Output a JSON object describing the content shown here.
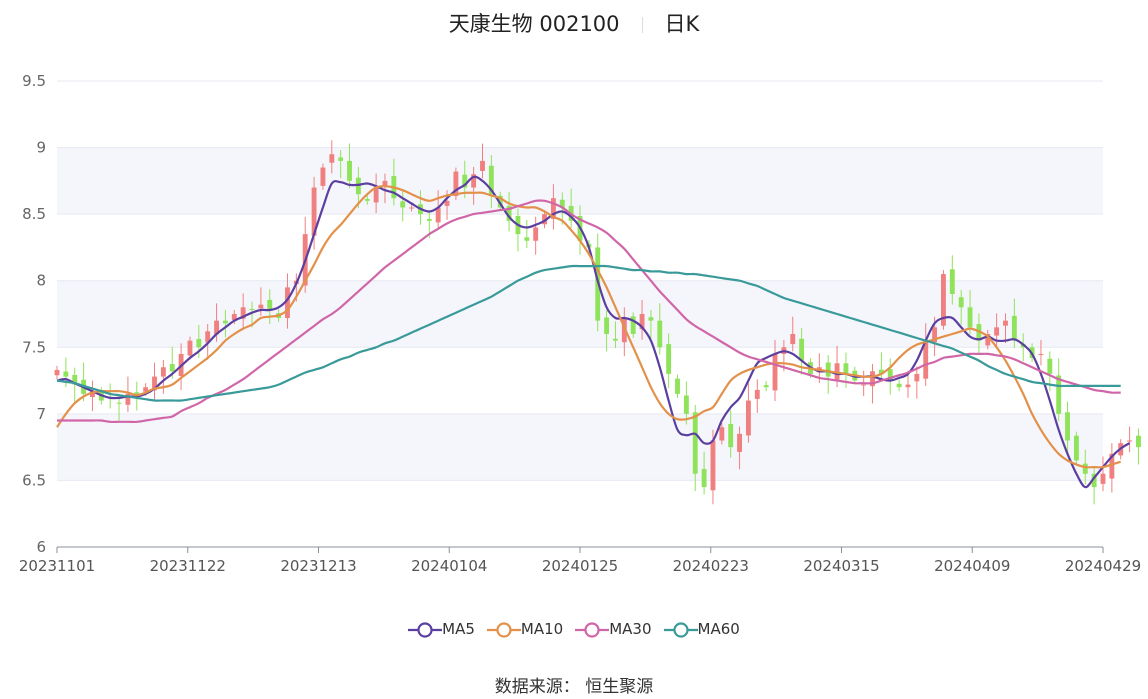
{
  "title": {
    "name": "天康生物 002100",
    "period": "日K"
  },
  "legend": [
    {
      "name": "MA5",
      "color": "#5b3fa0"
    },
    {
      "name": "MA10",
      "color": "#e3914a"
    },
    {
      "name": "MA30",
      "color": "#d066a8"
    },
    {
      "name": "MA60",
      "color": "#3a9a9a"
    }
  ],
  "source": "数据来源： 恒生聚源",
  "colors": {
    "up": "#f08080",
    "down": "#8fe35a",
    "grid": "#e6e9f2",
    "band": "#f5f6fb"
  },
  "chart_data": {
    "type": "candlestick",
    "ylim": [
      6,
      9.5
    ],
    "yticks": [
      "6",
      "6.5",
      "7",
      "7.5",
      "8",
      "8.5",
      "9",
      "9.5"
    ],
    "xticks": [
      "20231101",
      "20231122",
      "20231213",
      "20240104",
      "20240125",
      "20240223",
      "20240315",
      "20240409",
      "20240429"
    ],
    "n_days": 119,
    "closes": [
      7.33,
      7.28,
      7.22,
      7.15,
      7.17,
      7.1,
      7.12,
      7.08,
      7.15,
      7.13,
      7.2,
      7.28,
      7.35,
      7.32,
      7.45,
      7.55,
      7.5,
      7.62,
      7.7,
      7.68,
      7.75,
      7.8,
      7.78,
      7.82,
      7.78,
      7.72,
      7.95,
      8.0,
      8.35,
      8.7,
      8.85,
      8.95,
      8.9,
      8.75,
      8.65,
      8.6,
      8.7,
      8.75,
      8.62,
      8.55,
      8.55,
      8.5,
      8.45,
      8.55,
      8.6,
      8.82,
      8.7,
      8.8,
      8.9,
      8.65,
      8.55,
      8.45,
      8.35,
      8.3,
      8.4,
      8.5,
      8.62,
      8.55,
      8.45,
      8.3,
      8.25,
      7.7,
      7.6,
      7.55,
      7.72,
      7.6,
      7.75,
      7.7,
      7.5,
      7.3,
      7.15,
      7.0,
      6.55,
      6.45,
      6.8,
      6.9,
      6.75,
      6.85,
      7.1,
      7.18,
      7.2,
      7.45,
      7.5,
      7.6,
      7.4,
      7.3,
      7.35,
      7.28,
      7.38,
      7.3,
      7.25,
      7.22,
      7.32,
      7.3,
      7.25,
      7.2,
      7.22,
      7.3,
      7.55,
      7.65,
      8.05,
      7.9,
      7.8,
      7.65,
      7.55,
      7.6,
      7.65,
      7.7,
      7.55,
      7.5,
      7.42,
      7.45,
      7.3,
      7.0,
      6.8,
      6.65,
      6.55,
      6.45,
      6.55,
      6.7,
      6.78,
      6.8,
      6.75
    ],
    "series": [
      {
        "name": "MA5",
        "values": [
          7.25,
          7.26,
          7.23,
          7.2,
          7.17,
          7.14,
          7.12,
          7.12,
          7.13,
          7.13,
          7.15,
          7.19,
          7.25,
          7.3,
          7.36,
          7.42,
          7.47,
          7.53,
          7.6,
          7.65,
          7.7,
          7.73,
          7.76,
          7.78,
          7.78,
          7.8,
          7.86,
          7.98,
          8.15,
          8.35,
          8.55,
          8.73,
          8.74,
          8.72,
          8.72,
          8.73,
          8.71,
          8.68,
          8.66,
          8.62,
          8.58,
          8.54,
          8.52,
          8.55,
          8.62,
          8.68,
          8.72,
          8.78,
          8.75,
          8.68,
          8.58,
          8.48,
          8.42,
          8.4,
          8.42,
          8.45,
          8.5,
          8.52,
          8.48,
          8.4,
          8.25,
          8.0,
          7.8,
          7.72,
          7.72,
          7.7,
          7.65,
          7.55,
          7.35,
          7.1,
          6.88,
          6.84,
          6.85,
          6.78,
          6.8,
          6.95,
          7.05,
          7.12,
          7.25,
          7.38,
          7.42,
          7.45,
          7.47,
          7.45,
          7.4,
          7.35,
          7.32,
          7.32,
          7.3,
          7.3,
          7.28,
          7.28,
          7.28,
          7.26,
          7.25,
          7.27,
          7.3,
          7.4,
          7.55,
          7.68,
          7.72,
          7.72,
          7.65,
          7.58,
          7.56,
          7.58,
          7.55,
          7.55,
          7.56,
          7.52,
          7.45,
          7.3,
          7.1,
          6.88,
          6.7,
          6.55,
          6.45,
          6.52,
          6.6,
          6.68,
          6.74,
          6.78
        ]
      },
      {
        "name": "MA10",
        "values": [
          6.9,
          7.0,
          7.08,
          7.13,
          7.16,
          7.17,
          7.17,
          7.17,
          7.16,
          7.14,
          7.16,
          7.19,
          7.2,
          7.22,
          7.27,
          7.32,
          7.37,
          7.42,
          7.48,
          7.55,
          7.6,
          7.64,
          7.67,
          7.72,
          7.73,
          7.74,
          7.78,
          7.88,
          8.0,
          8.12,
          8.25,
          8.35,
          8.42,
          8.5,
          8.58,
          8.65,
          8.7,
          8.71,
          8.7,
          8.68,
          8.65,
          8.62,
          8.6,
          8.62,
          8.64,
          8.65,
          8.66,
          8.66,
          8.66,
          8.64,
          8.62,
          8.58,
          8.56,
          8.55,
          8.55,
          8.52,
          8.48,
          8.45,
          8.38,
          8.3,
          8.2,
          8.08,
          7.95,
          7.8,
          7.65,
          7.5,
          7.35,
          7.2,
          7.08,
          7.0,
          6.96,
          6.96,
          6.98,
          7.02,
          7.05,
          7.15,
          7.25,
          7.3,
          7.33,
          7.35,
          7.37,
          7.38,
          7.38,
          7.37,
          7.35,
          7.34,
          7.33,
          7.32,
          7.31,
          7.3,
          7.29,
          7.28,
          7.28,
          7.3,
          7.35,
          7.42,
          7.48,
          7.52,
          7.54,
          7.56,
          7.58,
          7.6,
          7.62,
          7.64,
          7.62,
          7.58,
          7.5,
          7.4,
          7.28,
          7.15,
          7.0,
          6.88,
          6.78,
          6.7,
          6.65,
          6.62,
          6.6,
          6.6,
          6.6,
          6.62,
          6.64
        ]
      },
      {
        "name": "MA30",
        "values": [
          6.95,
          6.95,
          6.95,
          6.95,
          6.95,
          6.95,
          6.94,
          6.94,
          6.94,
          6.94,
          6.95,
          6.96,
          6.97,
          6.98,
          7.02,
          7.05,
          7.08,
          7.12,
          7.15,
          7.18,
          7.22,
          7.26,
          7.31,
          7.36,
          7.41,
          7.46,
          7.51,
          7.56,
          7.61,
          7.66,
          7.71,
          7.75,
          7.8,
          7.86,
          7.92,
          7.98,
          8.04,
          8.1,
          8.15,
          8.2,
          8.25,
          8.3,
          8.35,
          8.39,
          8.43,
          8.46,
          8.48,
          8.5,
          8.51,
          8.52,
          8.53,
          8.54,
          8.56,
          8.58,
          8.6,
          8.6,
          8.58,
          8.55,
          8.5,
          8.46,
          8.43,
          8.4,
          8.36,
          8.3,
          8.24,
          8.16,
          8.08,
          8.0,
          7.92,
          7.85,
          7.78,
          7.71,
          7.66,
          7.62,
          7.58,
          7.54,
          7.5,
          7.46,
          7.43,
          7.41,
          7.39,
          7.37,
          7.35,
          7.33,
          7.31,
          7.29,
          7.27,
          7.26,
          7.25,
          7.24,
          7.23,
          7.23,
          7.23,
          7.25,
          7.27,
          7.29,
          7.31,
          7.34,
          7.37,
          7.39,
          7.42,
          7.43,
          7.44,
          7.45,
          7.45,
          7.45,
          7.44,
          7.43,
          7.41,
          7.38,
          7.35,
          7.32,
          7.29,
          7.26,
          7.24,
          7.22,
          7.2,
          7.18,
          7.17,
          7.16,
          7.16
        ]
      },
      {
        "name": "MA60",
        "values": [
          7.25,
          7.24,
          7.23,
          7.21,
          7.19,
          7.17,
          7.15,
          7.14,
          7.13,
          7.12,
          7.11,
          7.1,
          7.1,
          7.1,
          7.1,
          7.11,
          7.12,
          7.13,
          7.14,
          7.15,
          7.16,
          7.17,
          7.18,
          7.19,
          7.2,
          7.22,
          7.25,
          7.28,
          7.31,
          7.33,
          7.35,
          7.38,
          7.41,
          7.43,
          7.46,
          7.48,
          7.5,
          7.53,
          7.55,
          7.58,
          7.61,
          7.64,
          7.67,
          7.7,
          7.73,
          7.76,
          7.79,
          7.82,
          7.85,
          7.88,
          7.92,
          7.96,
          8.0,
          8.03,
          8.06,
          8.08,
          8.09,
          8.1,
          8.11,
          8.11,
          8.11,
          8.11,
          8.11,
          8.1,
          8.09,
          8.08,
          8.08,
          8.07,
          8.07,
          8.06,
          8.06,
          8.05,
          8.05,
          8.04,
          8.03,
          8.02,
          8.01,
          8.0,
          7.98,
          7.96,
          7.93,
          7.9,
          7.87,
          7.85,
          7.83,
          7.81,
          7.79,
          7.77,
          7.75,
          7.73,
          7.71,
          7.69,
          7.67,
          7.65,
          7.63,
          7.61,
          7.59,
          7.57,
          7.55,
          7.53,
          7.51,
          7.49,
          7.46,
          7.43,
          7.4,
          7.36,
          7.33,
          7.3,
          7.28,
          7.26,
          7.24,
          7.23,
          7.22,
          7.21,
          7.21,
          7.21,
          7.21,
          7.21,
          7.21,
          7.21,
          7.21
        ]
      }
    ]
  }
}
